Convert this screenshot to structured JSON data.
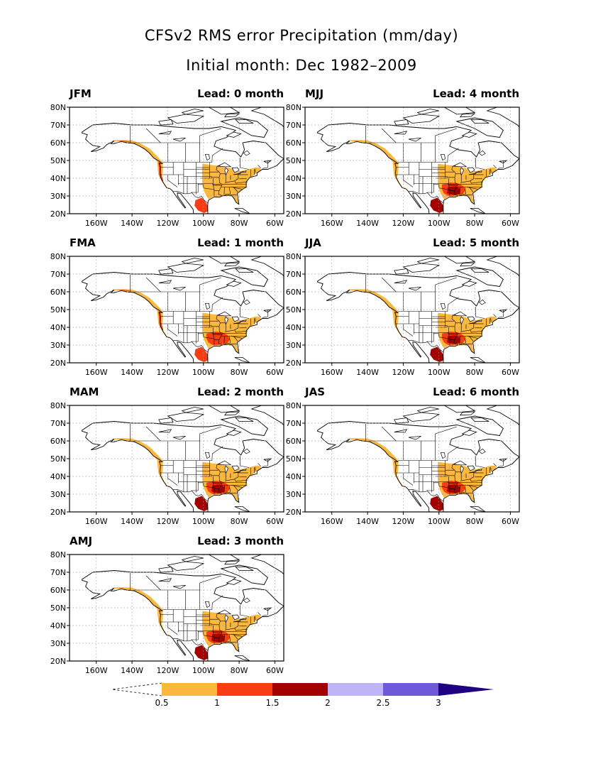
{
  "title": "CFSv2 RMS error Precipitation (mm/day)",
  "subtitle": "Initial month: Dec 1982–2009",
  "lat_ticks": [
    "80N",
    "70N",
    "60N",
    "50N",
    "40N",
    "30N",
    "20N"
  ],
  "lon_ticks": [
    "160W",
    "140W",
    "120W",
    "100W",
    "80W",
    "60W"
  ],
  "map_extent": {
    "lon_min": -175,
    "lon_max": -55,
    "lat_min": 20,
    "lat_max": 80
  },
  "panels": [
    {
      "season": "JFM",
      "lead": "Lead: 0 month",
      "levels": {
        "coast": 2,
        "east": 1,
        "south": 0
      }
    },
    {
      "season": "FMA",
      "lead": "Lead: 1 month",
      "levels": {
        "coast": 2,
        "east": 1,
        "south": 1
      }
    },
    {
      "season": "MAM",
      "lead": "Lead: 2 month",
      "levels": {
        "coast": 1,
        "east": 1,
        "south": 2
      }
    },
    {
      "season": "AMJ",
      "lead": "Lead: 3 month",
      "levels": {
        "coast": 1,
        "east": 1,
        "south": 2
      }
    },
    {
      "season": "MJJ",
      "lead": "Lead: 4 month",
      "levels": {
        "coast": 1,
        "east": 1,
        "south": 2
      }
    },
    {
      "season": "JJA",
      "lead": "Lead: 5 month",
      "levels": {
        "coast": 1,
        "east": 1,
        "south": 2
      }
    },
    {
      "season": "JAS",
      "lead": "Lead: 6 month",
      "levels": {
        "coast": 1,
        "east": 1,
        "south": 2
      }
    }
  ],
  "colorbar": {
    "labels": [
      "0.5",
      "1",
      "1.5",
      "2",
      "2.5",
      "3"
    ],
    "colors": [
      "#fbb83d",
      "#fa3c12",
      "#a30000",
      "#c0b4f8",
      "#6e5ad9",
      "#1f0080"
    ]
  },
  "colors": {
    "land": "#ffffff",
    "coastline": "#000000",
    "grid": "#9a9a9a",
    "fill_levels": [
      "#fbb83d",
      "#fa3c12",
      "#a30000"
    ]
  }
}
